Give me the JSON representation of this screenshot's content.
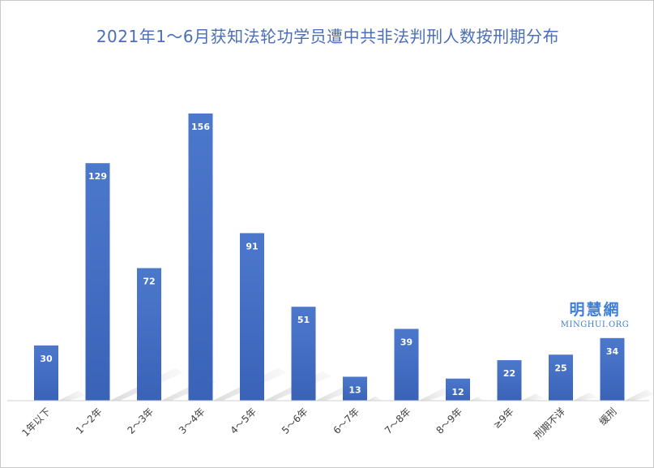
{
  "chart_data": {
    "type": "bar",
    "title": "2021年1～6月获知法轮功学员遭中共非法判刑人数按刑期分布",
    "categories": [
      "1年以下",
      "1～2年",
      "2～3年",
      "3～4年",
      "4～5年",
      "5～6年",
      "6～7年",
      "7～8年",
      "8～9年",
      "≥9年",
      "刑期不详",
      "缓刑"
    ],
    "values": [
      30,
      129,
      72,
      156,
      91,
      51,
      13,
      39,
      12,
      22,
      25,
      34
    ],
    "xlabel": "",
    "ylabel": "",
    "ylim": [
      0,
      160
    ],
    "grid": false,
    "legend": "none",
    "data_labels": true,
    "colors": {
      "bar": "#3f69c0",
      "bar_top": "#4c78cc",
      "label": "#ffffff",
      "axis": "#d0d0d0",
      "tick": "#404040",
      "title": "#4a6fb8"
    }
  },
  "watermark": {
    "cn": "明慧網",
    "en": "MINGHUI.ORG"
  }
}
